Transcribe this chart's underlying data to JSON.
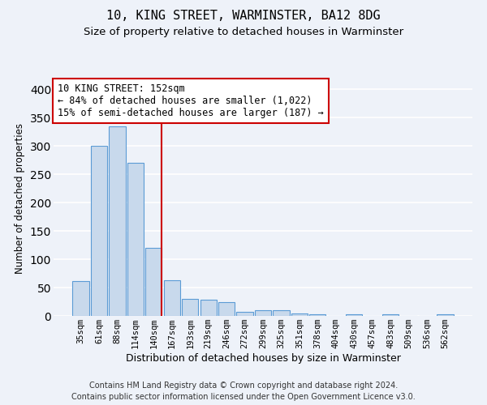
{
  "title": "10, KING STREET, WARMINSTER, BA12 8DG",
  "subtitle": "Size of property relative to detached houses in Warminster",
  "xlabel": "Distribution of detached houses by size in Warminster",
  "ylabel": "Number of detached properties",
  "categories": [
    "35sqm",
    "61sqm",
    "88sqm",
    "114sqm",
    "140sqm",
    "167sqm",
    "193sqm",
    "219sqm",
    "246sqm",
    "272sqm",
    "299sqm",
    "325sqm",
    "351sqm",
    "378sqm",
    "404sqm",
    "430sqm",
    "457sqm",
    "483sqm",
    "509sqm",
    "536sqm",
    "562sqm"
  ],
  "values": [
    62,
    300,
    335,
    270,
    120,
    63,
    30,
    28,
    25,
    7,
    10,
    10,
    5,
    3,
    0,
    3,
    0,
    3,
    0,
    0,
    3
  ],
  "bar_color": "#c8d9ec",
  "bar_edge_color": "#5b9bd5",
  "vline_x": 4.42,
  "vline_color": "#cc0000",
  "annotation_text": "10 KING STREET: 152sqm\n← 84% of detached houses are smaller (1,022)\n15% of semi-detached houses are larger (187) →",
  "annotation_box_color": "#ffffff",
  "annotation_box_edge_color": "#cc0000",
  "ylim": [
    0,
    415
  ],
  "yticks": [
    0,
    50,
    100,
    150,
    200,
    250,
    300,
    350,
    400
  ],
  "footer_text": "Contains HM Land Registry data © Crown copyright and database right 2024.\nContains public sector information licensed under the Open Government Licence v3.0.",
  "background_color": "#eef2f9",
  "grid_color": "#ffffff",
  "title_fontsize": 11,
  "subtitle_fontsize": 9.5,
  "xlabel_fontsize": 9,
  "ylabel_fontsize": 8.5,
  "tick_fontsize": 7.5,
  "annotation_fontsize": 8.5,
  "footer_fontsize": 7
}
